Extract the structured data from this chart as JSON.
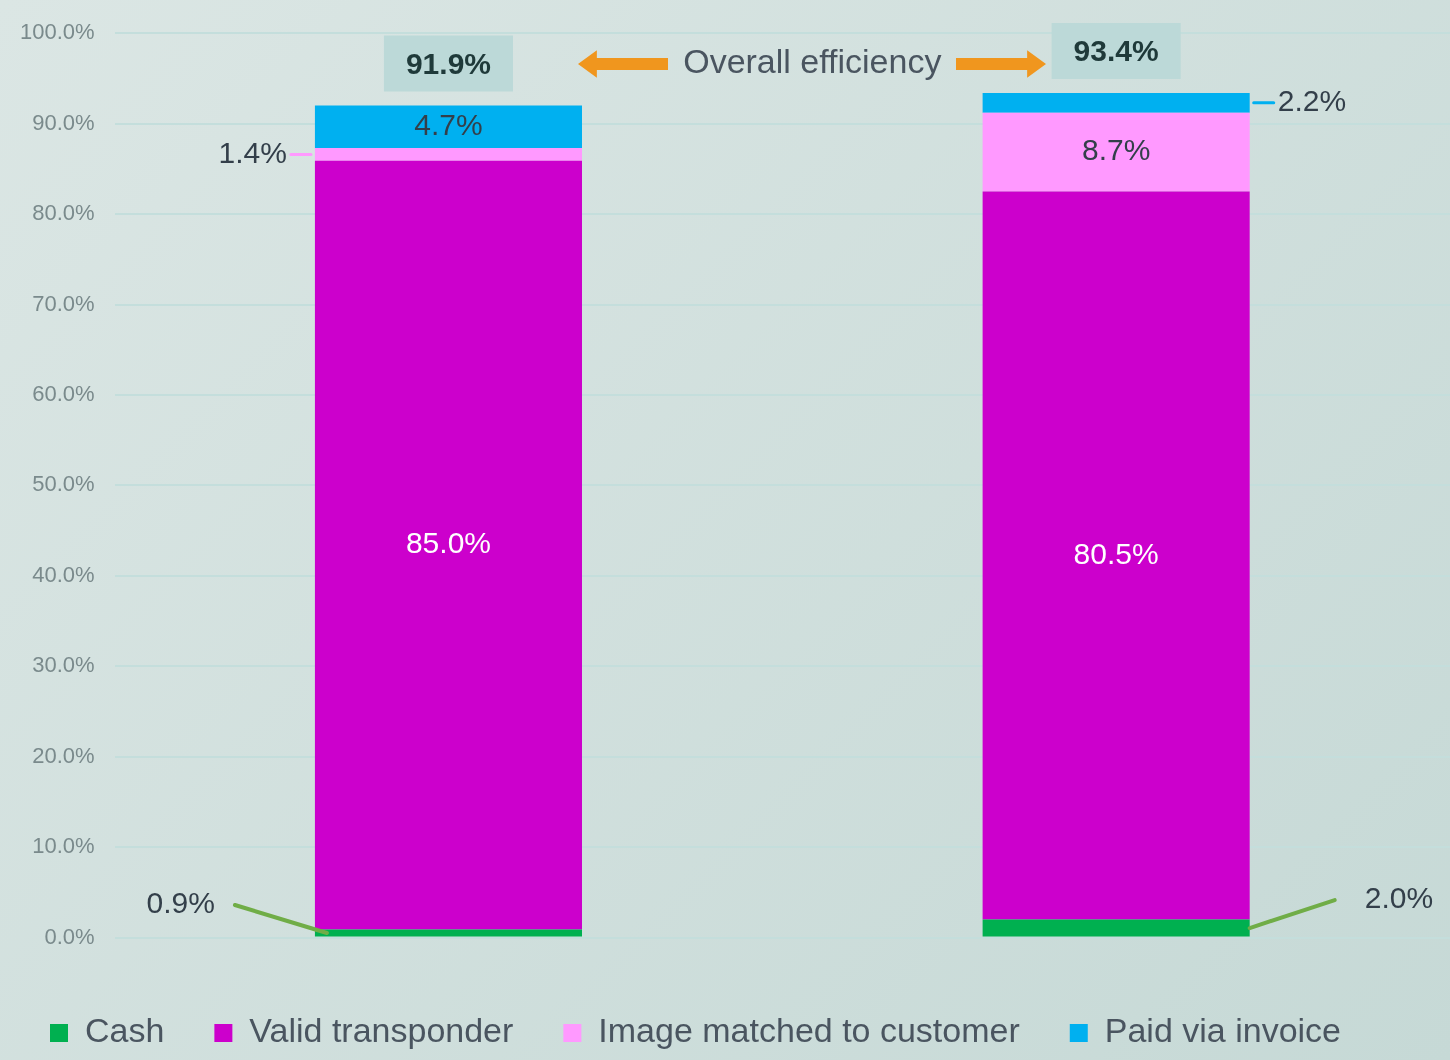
{
  "chart_data": {
    "type": "bar",
    "stacked": true,
    "categories": [
      null,
      null
    ],
    "series": [
      {
        "name": "Cash",
        "color": "#00b050",
        "values": [
          0.9,
          2.0
        ],
        "value_labels": [
          "0.9%",
          "2.0%"
        ]
      },
      {
        "name": "Valid transponder",
        "color": "#cc00cc",
        "values": [
          85.0,
          80.5
        ],
        "value_labels": [
          "85.0%",
          "80.5%"
        ]
      },
      {
        "name": "Image matched to customer",
        "color": "#ff99ff",
        "values": [
          1.4,
          8.7
        ],
        "value_labels": [
          "1.4%",
          "8.7%"
        ]
      },
      {
        "name": "Paid via invoice",
        "color": "#00b0f0",
        "values": [
          4.7,
          2.2
        ],
        "value_labels": [
          "4.7%",
          "2.2%"
        ]
      }
    ],
    "totals": [
      "91.9%",
      "93.4%"
    ],
    "annotations": [
      "Overall efficiency"
    ],
    "ylim": [
      0,
      100
    ],
    "yticks": [
      {
        "value": 0,
        "label": "0.0%"
      },
      {
        "value": 10,
        "label": "10.0%"
      },
      {
        "value": 20,
        "label": "20.0%"
      },
      {
        "value": 30,
        "label": "30.0%"
      },
      {
        "value": 40,
        "label": "40.0%"
      },
      {
        "value": 50,
        "label": "50.0%"
      },
      {
        "value": 60,
        "label": "60.0%"
      },
      {
        "value": 70,
        "label": "70.0%"
      },
      {
        "value": 80,
        "label": "80.0%"
      },
      {
        "value": 90,
        "label": "90.0%"
      },
      {
        "value": 100,
        "label": "100.0%"
      }
    ],
    "grid": "y",
    "legend": "bottom"
  }
}
